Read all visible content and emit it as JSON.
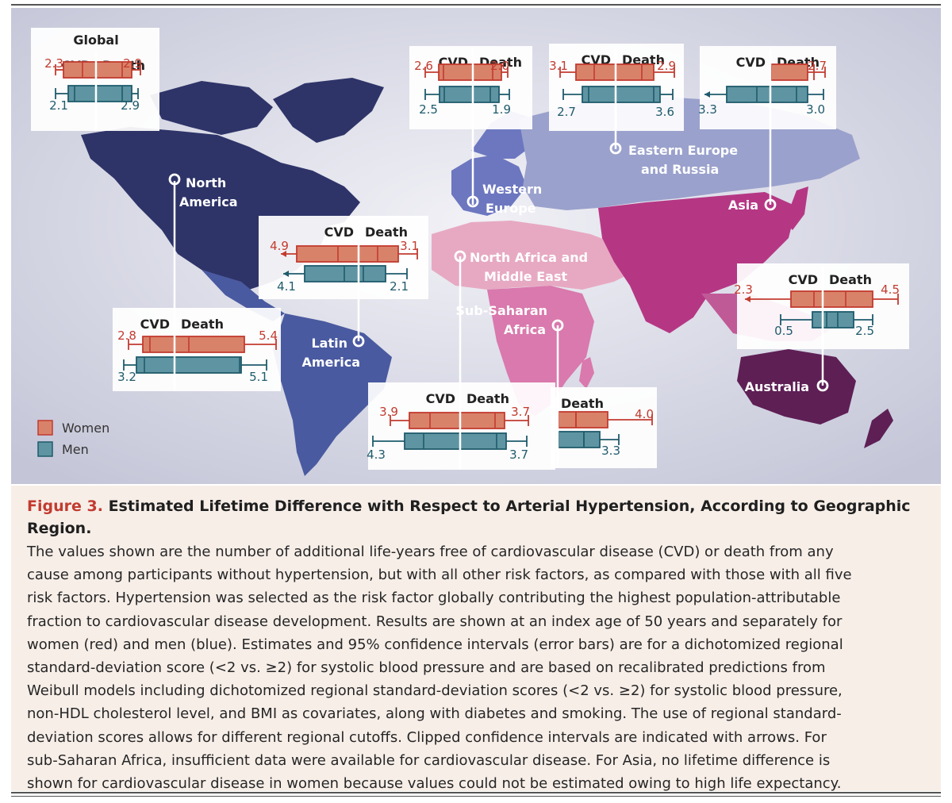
{
  "chart_data": {
    "type": "boxplot-map",
    "title": "Estimated Lifetime Difference with Respect to Arterial Hypertension, According to Geographic Region",
    "column_labels": {
      "cvd": "CVD",
      "death": "Death"
    },
    "legend": [
      {
        "label": "Women",
        "color": "#d9826a"
      },
      {
        "label": "Men",
        "color": "#5f95a2"
      }
    ],
    "series_colors": {
      "women": "#d9826a",
      "women_line": "#c23b2f",
      "men": "#5f95a2",
      "men_line": "#1f5b6b"
    },
    "panels": [
      {
        "region": "Global",
        "women": {
          "cvd": "2.3",
          "death": "2.9"
        },
        "men": {
          "cvd": "2.1",
          "death": "2.9"
        }
      },
      {
        "region": "Western Europe",
        "women": {
          "cvd": "2.6",
          "death": "2.0"
        },
        "men": {
          "cvd": "2.5",
          "death": "1.9"
        }
      },
      {
        "region": "Eastern Europe and Russia",
        "women": {
          "cvd": "3.1",
          "death": "2.9"
        },
        "men": {
          "cvd": "2.7",
          "death": "3.6"
        }
      },
      {
        "region": "Asia",
        "women": {
          "cvd": null,
          "death": "2.7"
        },
        "men": {
          "cvd": "3.3",
          "death": "3.0"
        }
      },
      {
        "region": "North America",
        "women": {
          "cvd": "2.8",
          "death": "5.4"
        },
        "men": {
          "cvd": "3.2",
          "death": "5.1"
        }
      },
      {
        "region": "Latin America",
        "women": {
          "cvd": "4.9",
          "death": "3.1"
        },
        "men": {
          "cvd": "4.1",
          "death": "2.1"
        }
      },
      {
        "region": "North Africa and Middle East",
        "women": {
          "cvd": "3.9",
          "death": "3.7"
        },
        "men": {
          "cvd": "4.3",
          "death": "3.7"
        }
      },
      {
        "region": "Sub-Saharan Africa",
        "women": {
          "cvd": null,
          "death": "4.0"
        },
        "men": {
          "cvd": null,
          "death": "3.3"
        }
      },
      {
        "region": "Australia",
        "women": {
          "cvd": "2.3",
          "death": "4.5"
        },
        "men": {
          "cvd": "0.5",
          "death": "2.5"
        }
      }
    ],
    "region_labels": {
      "north_america": [
        "North",
        "America"
      ],
      "latin_america": [
        "Latin",
        "America"
      ],
      "western_europe": [
        "Western",
        "Europe"
      ],
      "eastern_europe": [
        "Eastern Europe",
        "and Russia"
      ],
      "asia": [
        "Asia"
      ],
      "nafrica": [
        "North Africa and",
        "Middle East"
      ],
      "ssafrica": [
        "Sub-Saharan",
        "Africa"
      ],
      "australia": [
        "Australia"
      ]
    },
    "global_title": "Global",
    "death_only_label": "Death"
  },
  "caption": {
    "figure_label": "Figure 3.",
    "title": "Estimated Lifetime Difference with Respect to Arterial Hypertension, According to Geographic Region.",
    "lines": [
      "The values shown are the number of additional life-years free of cardiovascular disease (CVD) or death from any",
      "cause among participants without hypertension, but with all other risk factors, as compared with those with all five",
      "risk factors. Hypertension was selected as the risk factor globally contributing the highest population-attributable",
      "fraction to cardiovascular disease development. Results are shown at an index age of 50 years and separately for",
      "women (red) and men (blue). Estimates and 95% confidence intervals (error bars) are for a dichotomized regional",
      "standard-deviation score (<2 vs. ≥2) for systolic blood pressure and are based on recalibrated predictions from",
      "Weibull models including dichotomized regional standard-deviation scores (<2 vs. ≥2) for systolic blood pressure,",
      "non-HDL cholesterol level, and BMI as covariates, along with diabetes and smoking. The use of regional standard-",
      "deviation scores allows for different regional cutoffs. Clipped confidence intervals are indicated with arrows. For",
      "sub-Saharan Africa, insufficient data were available for cardiovascular disease. For Asia, no lifetime difference is",
      "shown for cardiovascular disease in women because values could not be estimated owing to high life expectancy."
    ]
  }
}
